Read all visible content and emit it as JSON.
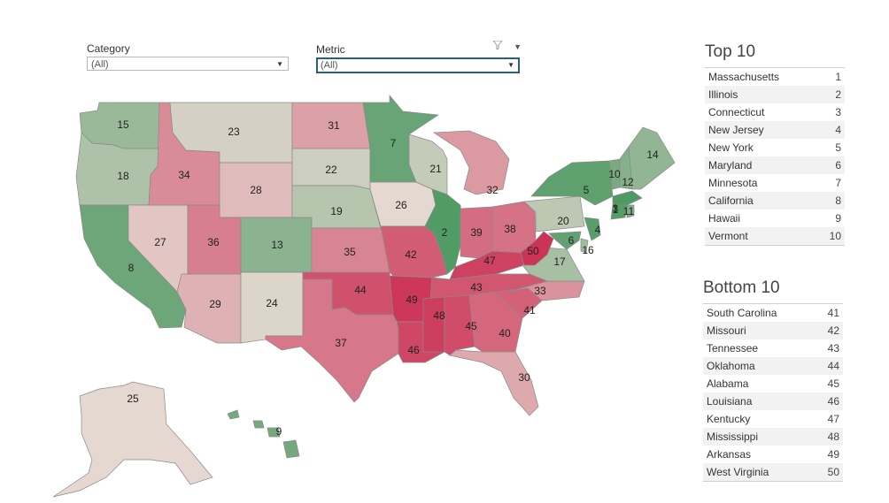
{
  "filters": {
    "category": {
      "label": "Category",
      "value": "(All)"
    },
    "metric": {
      "label": "Metric",
      "value": "(All)"
    },
    "icons": [
      "funnel-icon",
      "chevron-down-icon"
    ]
  },
  "map": {
    "states": [
      {
        "abbr": "WA",
        "rank": "15"
      },
      {
        "abbr": "OR",
        "rank": "18"
      },
      {
        "abbr": "CA",
        "rank": "8"
      },
      {
        "abbr": "NV",
        "rank": "27"
      },
      {
        "abbr": "ID",
        "rank": "34"
      },
      {
        "abbr": "MT",
        "rank": "23"
      },
      {
        "abbr": "WY",
        "rank": "28"
      },
      {
        "abbr": "UT",
        "rank": "36"
      },
      {
        "abbr": "AZ",
        "rank": "29"
      },
      {
        "abbr": "CO",
        "rank": "13"
      },
      {
        "abbr": "NM",
        "rank": "24"
      },
      {
        "abbr": "ND",
        "rank": "31"
      },
      {
        "abbr": "SD",
        "rank": "22"
      },
      {
        "abbr": "NE",
        "rank": "19"
      },
      {
        "abbr": "KS",
        "rank": "35"
      },
      {
        "abbr": "OK",
        "rank": "44"
      },
      {
        "abbr": "TX",
        "rank": "37"
      },
      {
        "abbr": "MN",
        "rank": "7"
      },
      {
        "abbr": "IA",
        "rank": "26"
      },
      {
        "abbr": "MO",
        "rank": "42"
      },
      {
        "abbr": "AR",
        "rank": "49"
      },
      {
        "abbr": "LA",
        "rank": "46"
      },
      {
        "abbr": "WI",
        "rank": "21"
      },
      {
        "abbr": "IL",
        "rank": "2"
      },
      {
        "abbr": "MI",
        "rank": "32"
      },
      {
        "abbr": "IN",
        "rank": "39"
      },
      {
        "abbr": "OH",
        "rank": "38"
      },
      {
        "abbr": "KY",
        "rank": "47"
      },
      {
        "abbr": "TN",
        "rank": "43"
      },
      {
        "abbr": "MS",
        "rank": "48"
      },
      {
        "abbr": "AL",
        "rank": "45"
      },
      {
        "abbr": "GA",
        "rank": "40"
      },
      {
        "abbr": "FL",
        "rank": "30"
      },
      {
        "abbr": "SC",
        "rank": "41"
      },
      {
        "abbr": "NC",
        "rank": "33"
      },
      {
        "abbr": "VA",
        "rank": "17"
      },
      {
        "abbr": "WV",
        "rank": "50"
      },
      {
        "abbr": "PA",
        "rank": "20"
      },
      {
        "abbr": "NY",
        "rank": "5"
      },
      {
        "abbr": "VT",
        "rank": "10"
      },
      {
        "abbr": "NH",
        "rank": "12"
      },
      {
        "abbr": "ME",
        "rank": "14"
      },
      {
        "abbr": "MA",
        "rank": "1"
      },
      {
        "abbr": "CT",
        "rank": "3"
      },
      {
        "abbr": "RI",
        "rank": "11"
      },
      {
        "abbr": "NJ",
        "rank": "4"
      },
      {
        "abbr": "DE",
        "rank": "16"
      },
      {
        "abbr": "MD",
        "rank": "6"
      },
      {
        "abbr": "AK",
        "rank": "25"
      },
      {
        "abbr": "HI",
        "rank": "9"
      }
    ],
    "color_scale": {
      "best": "#4f9a63",
      "mid": "#e4d8d0",
      "worst": "#cc3356"
    }
  },
  "top10": {
    "title": "Top 10",
    "rows": [
      {
        "name": "Massachusetts",
        "rank": "1"
      },
      {
        "name": "Illinois",
        "rank": "2"
      },
      {
        "name": "Connecticut",
        "rank": "3"
      },
      {
        "name": "New Jersey",
        "rank": "4"
      },
      {
        "name": "New York",
        "rank": "5"
      },
      {
        "name": "Maryland",
        "rank": "6"
      },
      {
        "name": "Minnesota",
        "rank": "7"
      },
      {
        "name": "California",
        "rank": "8"
      },
      {
        "name": "Hawaii",
        "rank": "9"
      },
      {
        "name": "Vermont",
        "rank": "10"
      }
    ]
  },
  "bottom10": {
    "title": "Bottom 10",
    "rows": [
      {
        "name": "South Carolina",
        "rank": "41"
      },
      {
        "name": "Missouri",
        "rank": "42"
      },
      {
        "name": "Tennessee",
        "rank": "43"
      },
      {
        "name": "Oklahoma",
        "rank": "44"
      },
      {
        "name": "Alabama",
        "rank": "45"
      },
      {
        "name": "Louisiana",
        "rank": "46"
      },
      {
        "name": "Kentucky",
        "rank": "47"
      },
      {
        "name": "Mississippi",
        "rank": "48"
      },
      {
        "name": "Arkansas",
        "rank": "49"
      },
      {
        "name": "West Virginia",
        "rank": "50"
      }
    ]
  }
}
